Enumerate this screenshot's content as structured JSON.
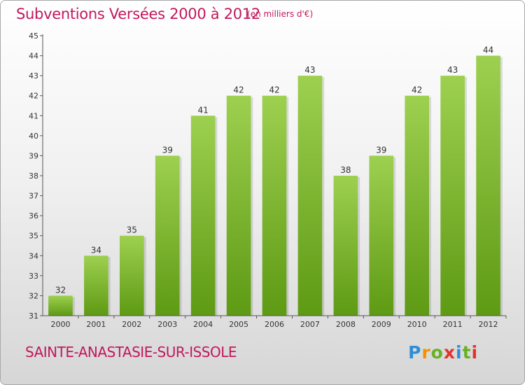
{
  "title": "Subventions Versées 2000 à 2012",
  "subtitle": "(en milliers d'€)",
  "place": "SAINTE-ANASTASIE-SUR-ISSOLE",
  "brand": {
    "letters": [
      "P",
      "r",
      "o",
      "x",
      "i",
      "t",
      "i"
    ],
    "colors": [
      "#2f8fd6",
      "#f39200",
      "#6ab023",
      "#e4322b",
      "#2f8fd6",
      "#6ab023",
      "#e4322b"
    ]
  },
  "colors": {
    "bar_top": "#9dd04f",
    "bar_bottom": "#5e9a14",
    "axis": "#555555",
    "text": "#333333",
    "accent": "#c2185b"
  },
  "chart_data": {
    "type": "bar",
    "categories": [
      "2000",
      "2001",
      "2002",
      "2003",
      "2004",
      "2005",
      "2006",
      "2007",
      "2008",
      "2009",
      "2010",
      "2011",
      "2012"
    ],
    "values": [
      32,
      34,
      35,
      39,
      41,
      42,
      42,
      43,
      38,
      39,
      42,
      43,
      44
    ],
    "ylim": [
      31,
      45
    ],
    "yticks": [
      31,
      32,
      33,
      34,
      35,
      36,
      37,
      38,
      39,
      40,
      41,
      42,
      43,
      44,
      45
    ],
    "grid": false,
    "data_labels": true
  }
}
